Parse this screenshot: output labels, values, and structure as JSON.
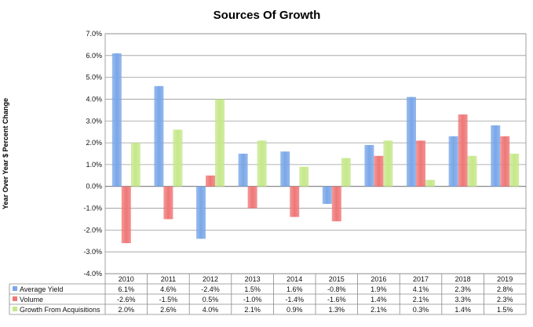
{
  "chart_data": {
    "type": "bar",
    "title": "Sources Of Growth",
    "ylabel": "Year Over Year $ Percent Change",
    "xlabel": "",
    "ylim": [
      -4.0,
      7.0
    ],
    "yticks": [
      7.0,
      6.0,
      5.0,
      4.0,
      3.0,
      2.0,
      1.0,
      0.0,
      -1.0,
      -2.0,
      -3.0,
      -4.0
    ],
    "ytick_labels": [
      "7.0%",
      "6.0%",
      "5.0%",
      "4.0%",
      "3.0%",
      "2.0%",
      "1.0%",
      "0.0%",
      "-1.0%",
      "-2.0%",
      "-3.0%",
      "-4.0%"
    ],
    "grid": true,
    "legend": "data-table-left",
    "categories": [
      "2010",
      "2011",
      "2012",
      "2013",
      "2014",
      "2015",
      "2016",
      "2017",
      "2018",
      "2019"
    ],
    "series": [
      {
        "name": "Average Yield",
        "color": "#7aa7e8",
        "values": [
          6.1,
          4.6,
          -2.4,
          1.5,
          1.6,
          -0.8,
          1.9,
          4.1,
          2.3,
          2.8
        ],
        "labels": [
          "6.1%",
          "4.6%",
          "-2.4%",
          "1.5%",
          "1.6%",
          "-0.8%",
          "1.9%",
          "4.1%",
          "2.3%",
          "2.8%"
        ]
      },
      {
        "name": "Volume",
        "color": "#ef7777",
        "values": [
          -2.6,
          -1.5,
          0.5,
          -1.0,
          -1.4,
          -1.6,
          1.4,
          2.1,
          3.3,
          2.3
        ],
        "labels": [
          "-2.6%",
          "-1.5%",
          "0.5%",
          "-1.0%",
          "-1.4%",
          "-1.6%",
          "1.4%",
          "2.1%",
          "3.3%",
          "2.3%"
        ]
      },
      {
        "name": "Growth From Acquisitions",
        "color": "#c6e88a",
        "values": [
          2.0,
          2.6,
          4.0,
          2.1,
          0.9,
          1.3,
          2.1,
          0.3,
          1.4,
          1.5
        ],
        "labels": [
          "2.0%",
          "2.6%",
          "4.0%",
          "2.1%",
          "0.9%",
          "1.3%",
          "2.1%",
          "0.3%",
          "1.4%",
          "1.5%"
        ]
      }
    ]
  }
}
